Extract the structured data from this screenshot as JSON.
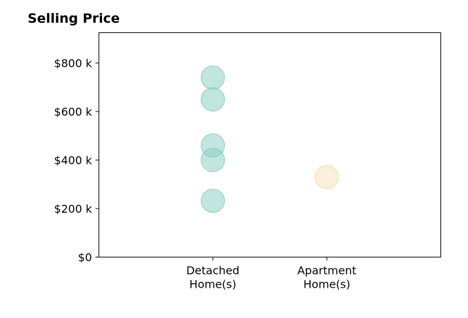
{
  "chart_data": {
    "type": "scatter",
    "title": "Selling Price",
    "xlabel": "",
    "ylabel": "",
    "categories": [
      [
        "Detached",
        "Home(s)"
      ],
      [
        "Apartment",
        "Home(s)"
      ]
    ],
    "ylim": [
      0,
      925000
    ],
    "yticks": [
      {
        "value": 0,
        "label": "$0"
      },
      {
        "value": 200000,
        "label": "$200 k"
      },
      {
        "value": 400000,
        "label": "$400 k"
      },
      {
        "value": 600000,
        "label": "$600 k"
      },
      {
        "value": 800000,
        "label": "$800 k"
      }
    ],
    "grid": false,
    "legend": "none",
    "series": [
      {
        "category_index": 0,
        "color": "#8ecfc5",
        "stroke": "#6dbdb1",
        "values": [
          740000,
          650000,
          460000,
          400000,
          232000
        ]
      },
      {
        "category_index": 1,
        "color": "#f5e2b8",
        "stroke": "#edd39b",
        "values": [
          330000
        ]
      }
    ]
  }
}
